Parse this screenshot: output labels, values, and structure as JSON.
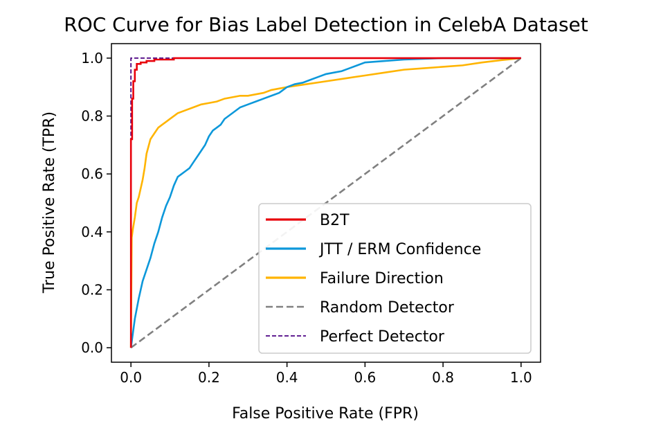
{
  "chart_data": {
    "type": "line",
    "title": "ROC Curve for Bias Label Detection in CelebA Dataset",
    "xlabel": "False Positive Rate (FPR)",
    "ylabel": "True Positive Rate (TPR)",
    "xlim": [
      -0.05,
      1.05
    ],
    "ylim": [
      -0.05,
      1.05
    ],
    "xticks": [
      0.0,
      0.2,
      0.4,
      0.6,
      0.8,
      1.0
    ],
    "yticks": [
      0.0,
      0.2,
      0.4,
      0.6,
      0.8,
      1.0
    ],
    "xtick_labels": [
      "0.0",
      "0.2",
      "0.4",
      "0.6",
      "0.8",
      "1.0"
    ],
    "ytick_labels": [
      "0.0",
      "0.2",
      "0.4",
      "0.6",
      "0.8",
      "1.0"
    ],
    "grid": false,
    "legend_position": "lower-right",
    "series": [
      {
        "name": "B2T",
        "color": "#e8000b",
        "style": "solid",
        "x": [
          0.0,
          0.0,
          0.003,
          0.003,
          0.006,
          0.006,
          0.01,
          0.01,
          0.015,
          0.015,
          0.025,
          0.025,
          0.04,
          0.04,
          0.06,
          0.06,
          0.11,
          0.11,
          1.0
        ],
        "y": [
          0.0,
          0.72,
          0.72,
          0.86,
          0.86,
          0.92,
          0.92,
          0.96,
          0.96,
          0.98,
          0.98,
          0.985,
          0.985,
          0.99,
          0.99,
          0.995,
          0.995,
          1.0,
          1.0
        ]
      },
      {
        "name": "JTT / ERM Confidence",
        "color": "#0d98da",
        "style": "solid",
        "x": [
          0.0,
          0.005,
          0.01,
          0.02,
          0.03,
          0.04,
          0.05,
          0.06,
          0.07,
          0.08,
          0.09,
          0.1,
          0.11,
          0.12,
          0.13,
          0.14,
          0.15,
          0.16,
          0.17,
          0.18,
          0.19,
          0.2,
          0.21,
          0.22,
          0.23,
          0.24,
          0.26,
          0.28,
          0.3,
          0.32,
          0.34,
          0.36,
          0.38,
          0.4,
          0.42,
          0.44,
          0.46,
          0.48,
          0.5,
          0.52,
          0.54,
          0.56,
          0.58,
          0.6,
          0.65,
          0.7,
          0.8,
          0.9,
          1.0
        ],
        "y": [
          0.0,
          0.05,
          0.1,
          0.17,
          0.23,
          0.27,
          0.31,
          0.36,
          0.4,
          0.45,
          0.49,
          0.52,
          0.56,
          0.59,
          0.6,
          0.61,
          0.62,
          0.64,
          0.66,
          0.68,
          0.7,
          0.73,
          0.75,
          0.76,
          0.77,
          0.79,
          0.81,
          0.83,
          0.84,
          0.85,
          0.86,
          0.87,
          0.88,
          0.9,
          0.91,
          0.915,
          0.925,
          0.935,
          0.945,
          0.95,
          0.955,
          0.965,
          0.975,
          0.985,
          0.99,
          0.995,
          1.0,
          1.0,
          1.0
        ]
      },
      {
        "name": "Failure Direction",
        "color": "#ffb400",
        "style": "solid",
        "x": [
          0.0,
          0.002,
          0.005,
          0.01,
          0.015,
          0.02,
          0.03,
          0.035,
          0.04,
          0.05,
          0.06,
          0.07,
          0.08,
          0.09,
          0.1,
          0.11,
          0.12,
          0.14,
          0.16,
          0.18,
          0.2,
          0.22,
          0.24,
          0.26,
          0.28,
          0.3,
          0.32,
          0.34,
          0.36,
          0.38,
          0.4,
          0.45,
          0.5,
          0.55,
          0.6,
          0.65,
          0.7,
          0.75,
          0.8,
          0.85,
          0.9,
          0.95,
          1.0
        ],
        "y": [
          0.0,
          0.38,
          0.41,
          0.45,
          0.5,
          0.52,
          0.58,
          0.62,
          0.67,
          0.72,
          0.74,
          0.76,
          0.77,
          0.78,
          0.79,
          0.8,
          0.81,
          0.82,
          0.83,
          0.84,
          0.845,
          0.85,
          0.86,
          0.865,
          0.87,
          0.87,
          0.875,
          0.88,
          0.89,
          0.895,
          0.9,
          0.91,
          0.92,
          0.93,
          0.94,
          0.95,
          0.96,
          0.965,
          0.97,
          0.975,
          0.985,
          0.993,
          1.0
        ]
      },
      {
        "name": "Random Detector",
        "color": "#808080",
        "style": "dashed",
        "x": [
          0.0,
          1.0
        ],
        "y": [
          0.0,
          1.0
        ]
      },
      {
        "name": "Perfect Detector",
        "color": "#4b0082",
        "style": "dashed-thin",
        "x": [
          0.0,
          0.0,
          1.0
        ],
        "y": [
          0.0,
          1.0,
          1.0
        ]
      }
    ]
  }
}
